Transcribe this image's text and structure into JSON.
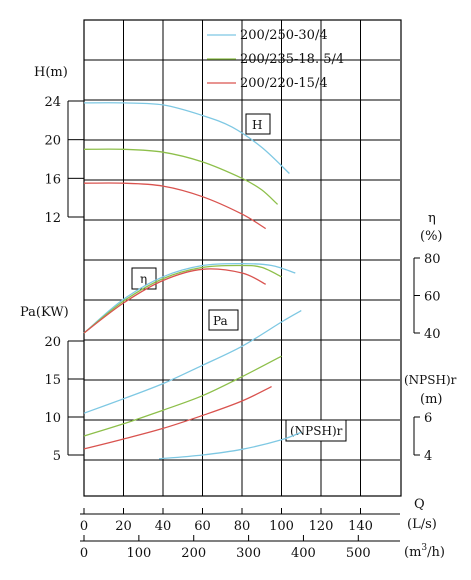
{
  "chart_data": {
    "type": "line",
    "legend": {
      "placement": "top-right",
      "entries": [
        {
          "label": "200/250-30/4",
          "color": "#7ec8e3"
        },
        {
          "label": "200/235-18. 5/4",
          "color": "#8dbf4a"
        },
        {
          "label": "200/220-15/4",
          "color": "#d9534f"
        }
      ]
    },
    "axes": {
      "head": {
        "label": "H(m)",
        "ticks": [
          "24",
          "20",
          "16",
          "12"
        ],
        "range": [
          12,
          24
        ]
      },
      "eff": {
        "label_line1": "η",
        "label_line2": "(%)",
        "ticks": [
          "80",
          "60",
          "40"
        ],
        "range": [
          40,
          80
        ]
      },
      "power": {
        "label": "Pa(KW)",
        "ticks": [
          "20",
          "15",
          "10",
          "5"
        ],
        "range": [
          5,
          20
        ]
      },
      "npsh": {
        "label_line1": "(NPSH)r",
        "label_line2": "(m)",
        "ticks": [
          "6",
          "4"
        ],
        "range": [
          4,
          6
        ]
      },
      "flow_ls": {
        "label": "(L/s)",
        "ticks": [
          "0",
          "20",
          "40",
          "60",
          "80",
          "100",
          "120",
          "140"
        ],
        "range": [
          0,
          140
        ]
      },
      "flow_m3h": {
        "label_pre": "(m",
        "label_sup": "3",
        "label_post": "/h)",
        "ticks": [
          "0",
          "100",
          "200",
          "300",
          "400",
          "500"
        ],
        "range": [
          0,
          500
        ]
      },
      "q_label": "Q"
    },
    "curve_labels": {
      "H": "H",
      "eta": "η",
      "Pa": "Pa",
      "npsh": "(NPSH)r"
    },
    "series": [
      {
        "name": "200/250-30/4",
        "color": "#7ec8e3",
        "head": {
          "x": [
            0,
            20,
            40,
            60,
            75,
            90,
            104
          ],
          "y": [
            23.8,
            23.8,
            23.6,
            22.5,
            21.3,
            19.2,
            16.5
          ]
        },
        "efficiency": {
          "x": [
            0,
            20,
            40,
            60,
            80,
            95,
            107
          ],
          "y": [
            40,
            58,
            70,
            76,
            77,
            76,
            72
          ]
        },
        "power": {
          "x": [
            0,
            20,
            40,
            60,
            80,
            100,
            110
          ],
          "y": [
            10.5,
            12.4,
            14.4,
            16.8,
            19.3,
            22.5,
            24
          ]
        },
        "npsh": {
          "x": [
            38,
            60,
            80,
            100,
            110
          ],
          "y": [
            3.8,
            4.0,
            4.3,
            4.8,
            5.2
          ]
        }
      },
      {
        "name": "200/235-18. 5/4",
        "color": "#8dbf4a",
        "head": {
          "x": [
            0,
            20,
            40,
            60,
            80,
            90,
            98
          ],
          "y": [
            19.0,
            19.0,
            18.7,
            17.7,
            16.0,
            14.8,
            13.3
          ]
        },
        "efficiency": {
          "x": [
            0,
            20,
            40,
            60,
            80,
            90,
            100
          ],
          "y": [
            40,
            57,
            69,
            75,
            76,
            75,
            70
          ]
        },
        "power": {
          "x": [
            0,
            20,
            40,
            60,
            80,
            100
          ],
          "y": [
            7.5,
            9.1,
            10.9,
            12.8,
            15.3,
            18.0
          ]
        }
      },
      {
        "name": "200/220-15/4",
        "color": "#d9534f",
        "head": {
          "x": [
            0,
            20,
            40,
            60,
            80,
            92
          ],
          "y": [
            15.5,
            15.5,
            15.2,
            14.1,
            12.3,
            10.8
          ]
        },
        "efficiency": {
          "x": [
            0,
            20,
            40,
            60,
            80,
            92
          ],
          "y": [
            40,
            56,
            68,
            74,
            72,
            66
          ]
        },
        "power": {
          "x": [
            0,
            20,
            40,
            60,
            80,
            95
          ],
          "y": [
            5.8,
            7.1,
            8.5,
            10.2,
            12.1,
            14.0
          ]
        }
      }
    ]
  }
}
